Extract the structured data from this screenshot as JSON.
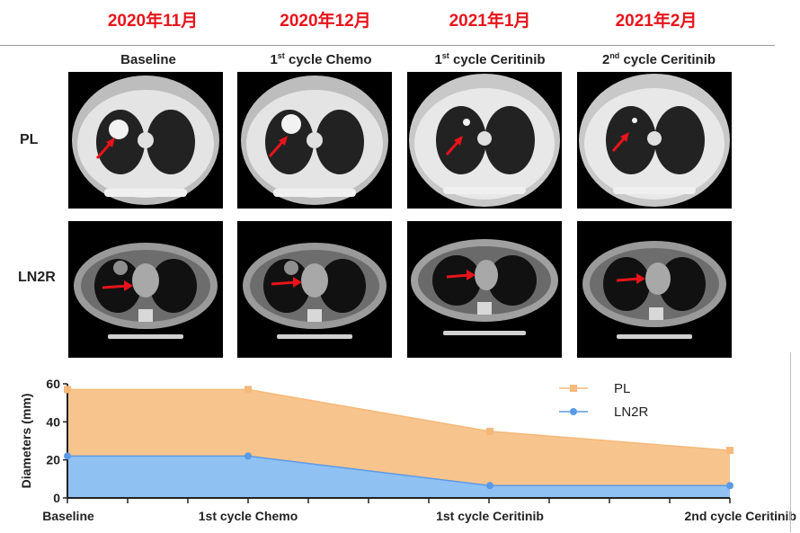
{
  "dates": [
    "2020年11月",
    "2020年12月",
    "2021年1月",
    "2021年2月"
  ],
  "cycles": [
    {
      "pre": "Baseline",
      "sup": "",
      "post": ""
    },
    {
      "pre": "1",
      "sup": "st",
      "post": " cycle Chemo"
    },
    {
      "pre": "1",
      "sup": "st",
      "post": " cycle Ceritinib"
    },
    {
      "pre": "2",
      "sup": "nd",
      "post": " cycle Ceritinib"
    }
  ],
  "rows": [
    "PL",
    "LN2R"
  ],
  "colors": {
    "date_red": "#e8141b",
    "pl": "#f8c48e",
    "pl_line": "#f5b97a",
    "ln2r": "#8fc1f3",
    "ln2r_line": "#5a9ae6",
    "arrow": "#e8141b"
  },
  "chart_data": {
    "type": "area",
    "categories": [
      "Baseline",
      "1st cycle Chemo",
      "1st cycle Ceritinib",
      "2nd cycle Ceritinib"
    ],
    "series": [
      {
        "name": "PL",
        "values": [
          57,
          57,
          35,
          25
        ]
      },
      {
        "name": "LN2R",
        "values": [
          22,
          22,
          6.5,
          6.5
        ]
      }
    ],
    "ylabel": "Diameters (mm)",
    "xlabel": "",
    "ylim": [
      0,
      60
    ],
    "yticks": [
      0,
      20,
      40,
      60
    ],
    "legend": "top-right"
  }
}
